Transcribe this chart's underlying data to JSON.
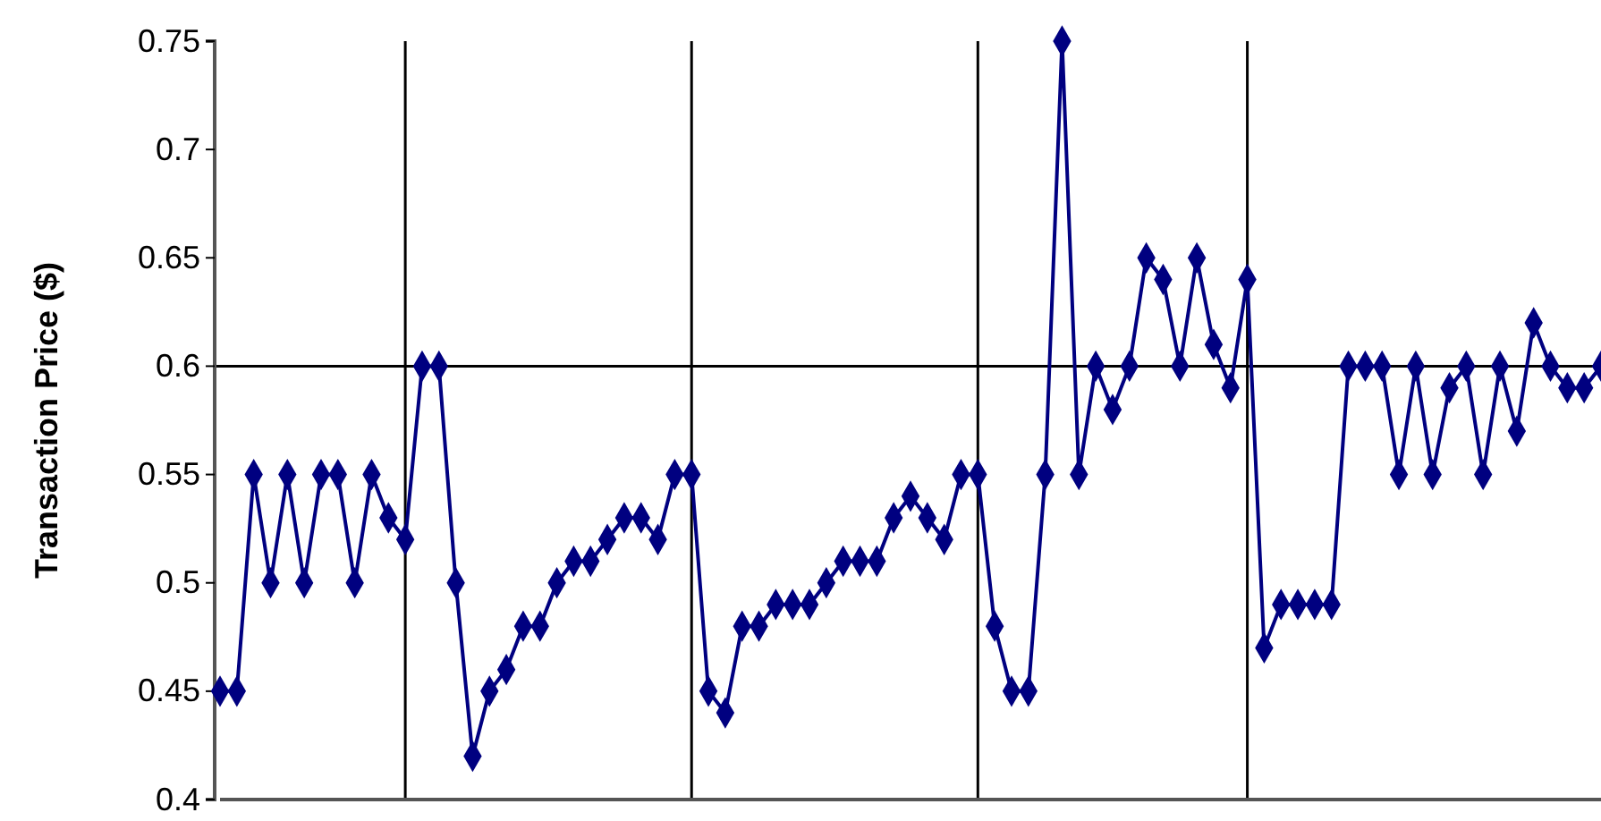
{
  "chart_data": {
    "type": "line",
    "ylabel": "Transaction Price ($)",
    "categories": [
      null,
      null,
      null,
      null,
      null,
      null,
      null,
      null,
      null,
      null,
      null,
      null,
      null,
      null,
      null,
      null,
      null,
      null,
      null,
      null,
      null,
      null,
      null,
      null,
      null,
      null,
      null,
      null,
      null,
      null,
      null,
      null,
      null,
      null,
      null,
      null,
      null,
      null,
      null,
      null,
      null,
      null,
      null,
      null,
      null,
      null,
      null,
      null,
      null,
      null,
      null,
      null,
      null,
      null,
      null,
      null,
      null,
      null,
      null,
      null,
      null,
      null,
      null,
      null,
      null,
      null,
      null,
      null,
      null,
      null,
      null,
      null,
      null,
      null,
      null,
      null,
      null,
      null,
      null,
      null,
      null,
      null,
      null
    ],
    "series": [
      {
        "color": "#000080",
        "values": [
          0.45,
          0.45,
          0.55,
          0.5,
          0.55,
          0.5,
          0.55,
          0.55,
          0.5,
          0.55,
          0.53,
          0.52,
          0.6,
          0.6,
          0.5,
          0.42,
          0.45,
          0.46,
          0.48,
          0.48,
          0.5,
          0.51,
          0.51,
          0.52,
          0.53,
          0.53,
          0.52,
          0.55,
          0.55,
          0.45,
          0.44,
          0.48,
          0.48,
          0.49,
          0.49,
          0.49,
          0.5,
          0.51,
          0.51,
          0.51,
          0.53,
          0.54,
          0.53,
          0.52,
          0.55,
          0.55,
          0.48,
          0.45,
          0.45,
          0.55,
          0.75,
          0.55,
          0.6,
          0.58,
          0.6,
          0.65,
          0.64,
          0.6,
          0.65,
          0.61,
          0.59,
          0.64,
          0.47,
          0.49,
          0.49,
          0.49,
          0.49,
          0.6,
          0.6,
          0.6,
          0.55,
          0.6,
          0.55,
          0.59,
          0.6,
          0.55,
          0.6,
          0.57,
          0.62,
          0.6,
          0.59,
          0.59,
          0.6
        ]
      }
    ],
    "ylim": [
      0.4,
      0.75
    ],
    "yticks": [
      0.4,
      0.45,
      0.5,
      0.55,
      0.6,
      0.65,
      0.7,
      0.75
    ],
    "marker": "diamond",
    "line_style": "solid",
    "grid": "x",
    "ref_lines": [
      {
        "axis": "y",
        "value": 0.6
      }
    ]
  }
}
